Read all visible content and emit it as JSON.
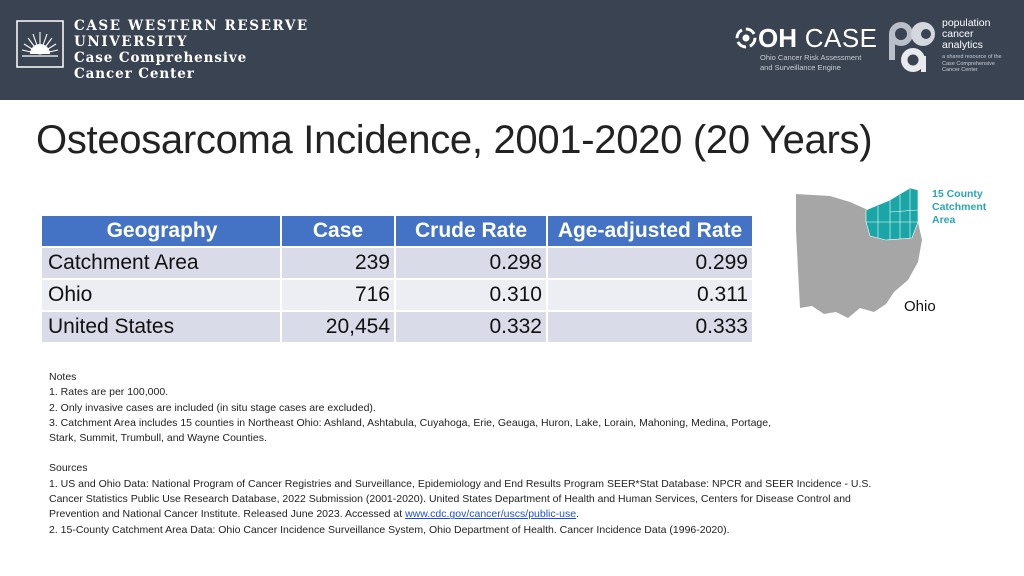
{
  "header": {
    "cwru_lines": [
      "CASE WESTERN RESERVE",
      "UNIVERSITY",
      "Case Comprehensive",
      "Cancer Center"
    ],
    "ohcase": {
      "title_oh": "OH",
      "title_case": " CASE",
      "subtitle_lines": [
        "Ohio Cancer Risk Assessment",
        "and Surveillance Engine"
      ]
    },
    "pca": {
      "lines": [
        "population",
        "cancer",
        "analytics"
      ],
      "small_lines": [
        "a shared resource of the",
        "Case Comprehensive",
        "Cancer Center"
      ]
    }
  },
  "title": "Osteosarcoma Incidence, 2001-2020 (20 Years)",
  "table": {
    "headers": [
      "Geography",
      "Case",
      "Crude Rate",
      "Age-adjusted Rate"
    ],
    "rows": [
      [
        "Catchment Area",
        "239",
        "0.298",
        "0.299"
      ],
      [
        "Ohio",
        "716",
        "0.310",
        "0.311"
      ],
      [
        "United States",
        "20,454",
        "0.332",
        "0.333"
      ]
    ]
  },
  "map": {
    "legend_lines": [
      "15 County",
      "Catchment",
      "Area"
    ],
    "label": "Ohio",
    "state_color": "#a6a6a6",
    "catchment_color": "#1aa6a6"
  },
  "notes": {
    "notes_heading": "Notes",
    "notes_items": [
      "1. Rates are per 100,000.",
      "2. Only invasive cases are included (in situ stage cases are excluded).",
      "3. Catchment Area includes 15 counties in Northeast Ohio: Ashland, Ashtabula, Cuyahoga, Erie, Geauga, Huron, Lake, Lorain, Mahoning, Medina, Portage,",
      "Stark, Summit, Trumbull, and Wayne Counties."
    ],
    "sources_heading": "Sources",
    "sources_line1": "1. US and Ohio Data: National Program of Cancer Registries and Surveillance, Epidemiology and End Results Program SEER*Stat Database: NPCR and SEER Incidence - U.S.",
    "sources_line2": "Cancer Statistics Public Use Research Database, 2022 Submission (2001-2020). United States Department of Health and Human Services, Centers for Disease Control and",
    "sources_line3_pre": "Prevention and National Cancer Institute. Released June 2023. Accessed at ",
    "sources_link": "www.cdc.gov/cancer/uscs/public-use",
    "sources_line3_post": ".",
    "sources_line4": "2. 15-County Catchment Area Data: Ohio Cancer Incidence Surveillance System, Ohio Department of Health. Cancer Incidence Data (1996-2020)."
  }
}
